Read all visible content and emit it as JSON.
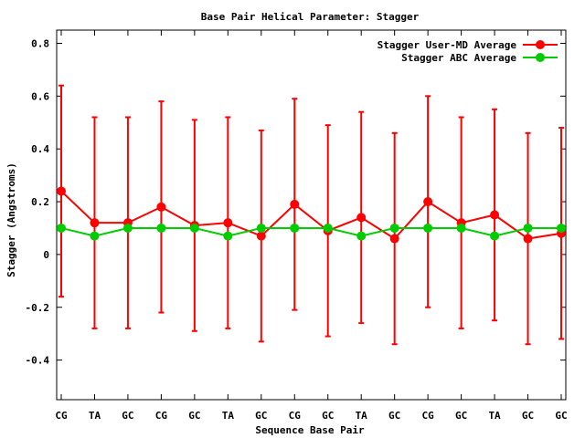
{
  "chart_data": {
    "type": "line",
    "title": "Base Pair Helical Parameter: Stagger",
    "xlabel": "Sequence Base Pair",
    "ylabel": "Stagger (Angstroms)",
    "categories": [
      "CG",
      "TA",
      "GC",
      "CG",
      "GC",
      "TA",
      "GC",
      "CG",
      "GC",
      "TA",
      "GC",
      "CG",
      "GC",
      "TA",
      "GC",
      "GC"
    ],
    "ylim": [
      -0.55,
      0.85
    ],
    "yticks": [
      "0.8",
      "0.6",
      "0.4",
      "0.2",
      "0",
      "-0.2",
      "-0.4"
    ],
    "legend_position": "top-right",
    "series": [
      {
        "name": "Stagger User-MD Average",
        "color": "#ff0000",
        "values": [
          0.24,
          0.12,
          0.12,
          0.18,
          0.11,
          0.12,
          0.07,
          0.19,
          0.09,
          0.14,
          0.06,
          0.2,
          0.12,
          0.15,
          0.06,
          0.08
        ],
        "err_low": [
          -0.16,
          -0.28,
          -0.28,
          -0.22,
          -0.29,
          -0.28,
          -0.33,
          -0.21,
          -0.31,
          -0.26,
          -0.34,
          -0.2,
          -0.28,
          -0.25,
          -0.34,
          -0.32
        ],
        "err_high": [
          0.64,
          0.52,
          0.52,
          0.58,
          0.51,
          0.52,
          0.47,
          0.59,
          0.49,
          0.54,
          0.46,
          0.6,
          0.52,
          0.55,
          0.46,
          0.48
        ]
      },
      {
        "name": "Stagger ABC Average",
        "color": "#00cc00",
        "values": [
          0.1,
          0.07,
          0.1,
          0.1,
          0.1,
          0.07,
          0.1,
          0.1,
          0.1,
          0.07,
          0.1,
          0.1,
          0.1,
          0.07,
          0.1,
          0.1
        ]
      }
    ]
  }
}
